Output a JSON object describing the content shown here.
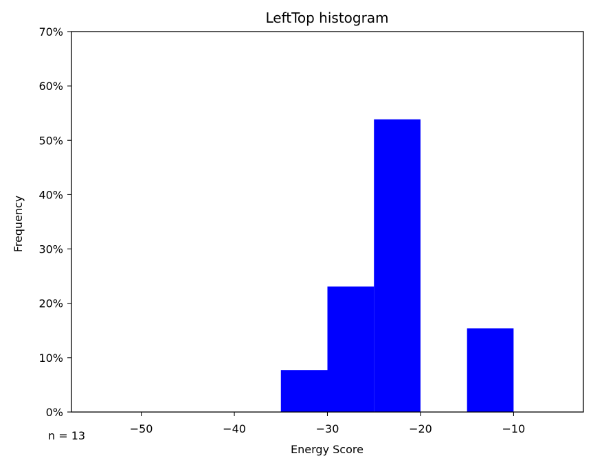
{
  "chart_data": {
    "type": "histogram",
    "title": "LeftTop histogram",
    "xlabel": "Energy Score",
    "ylabel": "Frequency",
    "annotation": "n = 13",
    "xlim": [
      -57.5,
      -2.5
    ],
    "ylim": [
      0,
      0.7
    ],
    "x_ticks": [
      -50,
      -40,
      -30,
      -20,
      -10
    ],
    "x_tick_labels": [
      "−50",
      "−40",
      "−30",
      "−20",
      "−10"
    ],
    "y_ticks": [
      0,
      0.1,
      0.2,
      0.3,
      0.4,
      0.5,
      0.6,
      0.7
    ],
    "y_tick_labels": [
      "0%",
      "10%",
      "20%",
      "30%",
      "40%",
      "50%",
      "60%",
      "70%"
    ],
    "bins": [
      {
        "x0": -35,
        "x1": -30,
        "value": 0.0769
      },
      {
        "x0": -30,
        "x1": -25,
        "value": 0.2308
      },
      {
        "x0": -25,
        "x1": -20,
        "value": 0.5385
      },
      {
        "x0": -15,
        "x1": -10,
        "value": 0.1538
      }
    ],
    "bar_color": "#0000ff",
    "grid": false
  }
}
